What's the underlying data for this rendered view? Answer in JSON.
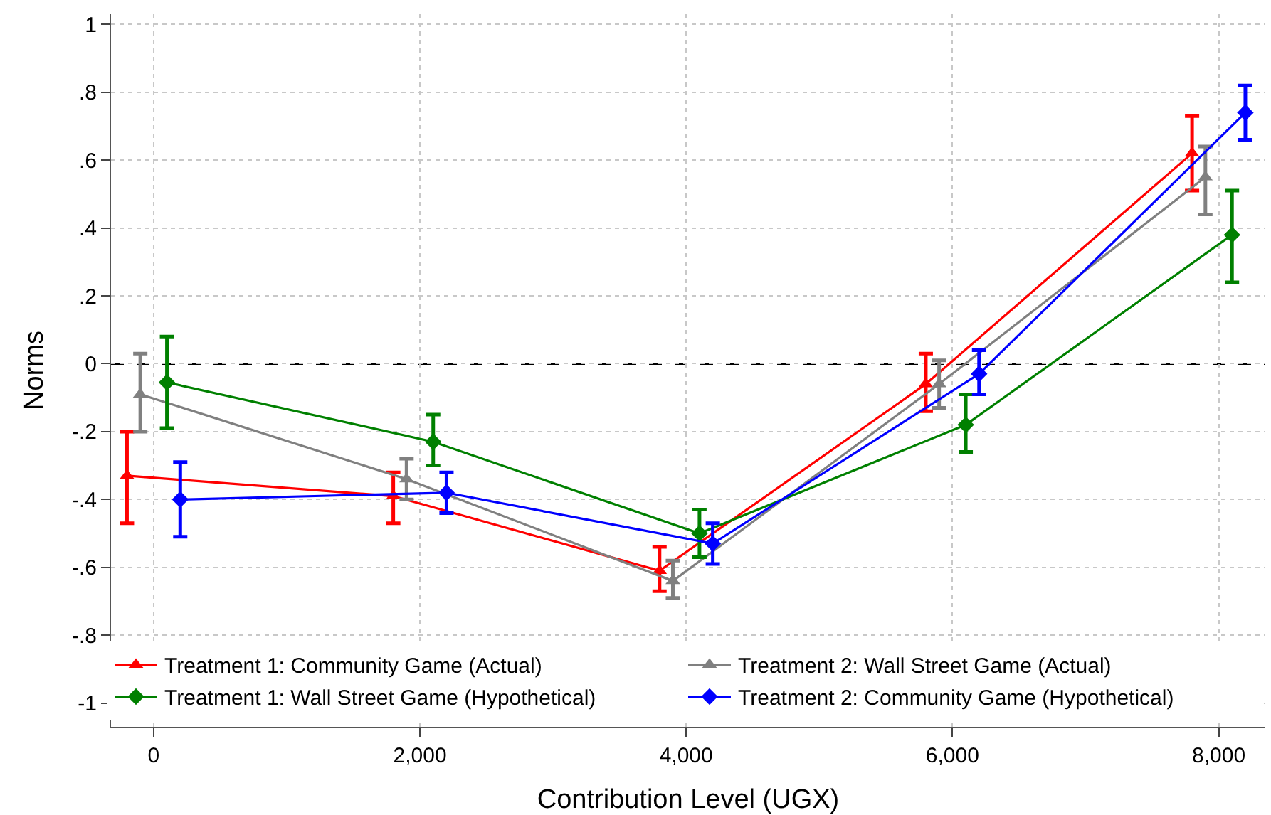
{
  "chart_data": {
    "type": "line",
    "xlabel": "Contribution Level (UGX)",
    "ylabel": "Norms",
    "xlim": [
      -320,
      8350
    ],
    "ylim": [
      -1.07,
      1.03
    ],
    "xticks": [
      0,
      {
        "value": 2000,
        "label": "2,000"
      },
      {
        "value": 4000,
        "label": "4,000"
      },
      {
        "value": 6000,
        "label": "6,000"
      },
      {
        "value": 8000,
        "label": "8,000"
      }
    ],
    "yticks": [
      {
        "value": -1,
        "label": "-1"
      },
      {
        "value": -0.8,
        "label": "-.8"
      },
      {
        "value": -0.6,
        "label": "-.6"
      },
      {
        "value": -0.4,
        "label": "-.4"
      },
      {
        "value": -0.2,
        "label": "-.2"
      },
      0,
      {
        "value": 0.2,
        "label": ".2"
      },
      {
        "value": 0.4,
        "label": ".4"
      },
      {
        "value": 0.6,
        "label": ".6"
      },
      {
        "value": 0.8,
        "label": ".8"
      },
      1
    ],
    "grid": true,
    "legend": "bottom",
    "line_style": "solid",
    "ref_lines": [
      {
        "axis": "y",
        "value": 0,
        "color": "#000000",
        "line_style": "dashed"
      }
    ],
    "series": [
      {
        "name": "Treatment 1: Community Game (Actual)",
        "color": "#ff0000",
        "marker": "triangle",
        "x": [
          -200,
          1800,
          3800,
          5800,
          7800
        ],
        "values": [
          -0.33,
          -0.39,
          -0.61,
          -0.06,
          0.62
        ],
        "errors": [
          [
            -0.47,
            -0.2
          ],
          [
            -0.47,
            -0.32
          ],
          [
            -0.67,
            -0.54
          ],
          [
            -0.14,
            0.03
          ],
          [
            0.51,
            0.73
          ]
        ]
      },
      {
        "name": "Treatment 2: Wall Street Game (Actual)",
        "color": "#808080",
        "marker": "triangle",
        "x": [
          -100,
          1900,
          3900,
          5900,
          7900
        ],
        "values": [
          -0.09,
          -0.34,
          -0.64,
          -0.06,
          0.55
        ],
        "errors": [
          [
            -0.2,
            0.03
          ],
          [
            -0.4,
            -0.28
          ],
          [
            -0.69,
            -0.58
          ],
          [
            -0.13,
            0.01
          ],
          [
            0.44,
            0.64
          ]
        ]
      },
      {
        "name": "Treatment 1: Wall Street Game (Hypothetical)",
        "color": "#008000",
        "marker": "diamond",
        "x": [
          100,
          2100,
          4100,
          6100,
          8100
        ],
        "values": [
          -0.055,
          -0.23,
          -0.5,
          -0.18,
          0.38
        ],
        "errors": [
          [
            -0.19,
            0.08
          ],
          [
            -0.3,
            -0.15
          ],
          [
            -0.57,
            -0.43
          ],
          [
            -0.26,
            -0.09
          ],
          [
            0.24,
            0.51
          ]
        ]
      },
      {
        "name": "Treatment 2: Community Game (Hypothetical)",
        "color": "#0000ff",
        "marker": "diamond",
        "x": [
          200,
          2200,
          4200,
          6200,
          8200
        ],
        "values": [
          -0.4,
          -0.38,
          -0.53,
          -0.03,
          0.74
        ],
        "errors": [
          [
            -0.51,
            -0.29
          ],
          [
            -0.44,
            -0.32
          ],
          [
            -0.59,
            -0.47
          ],
          [
            -0.09,
            0.04
          ],
          [
            0.66,
            0.82
          ]
        ]
      }
    ]
  }
}
